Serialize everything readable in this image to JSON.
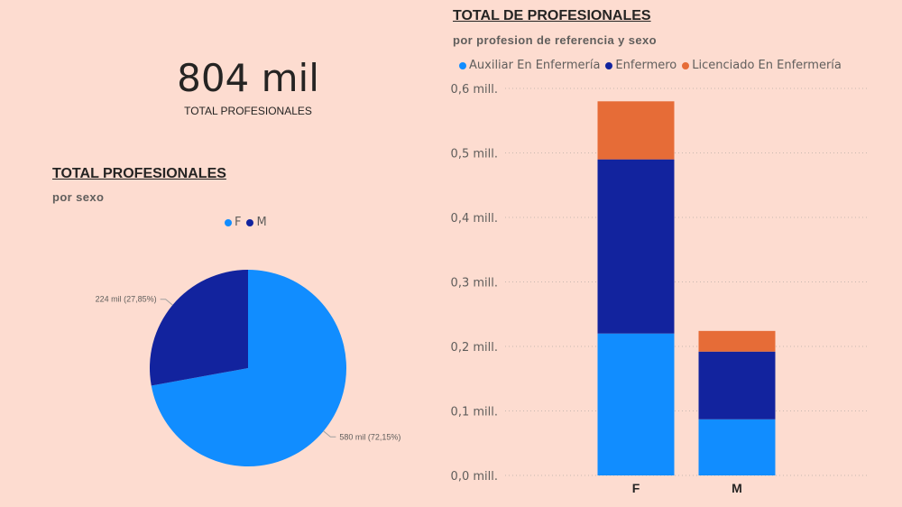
{
  "kpi": {
    "value": "804 mil",
    "label": "TOTAL PROFESIONALES"
  },
  "pie_panel": {
    "title": "TOTAL PROFESIONALES",
    "subtitle": "por sexo",
    "legend": [
      {
        "label": "F",
        "color": "#118dff"
      },
      {
        "label": "M",
        "color": "#12239e"
      }
    ],
    "labels": {
      "F": "580 mil (72,15%)",
      "M": "224 mil (27,85%)"
    }
  },
  "bar_panel": {
    "title": "TOTAL DE PROFESIONALES",
    "subtitle": "por profesion de referencia y sexo",
    "legend": [
      {
        "label": "Auxiliar En Enfermería",
        "color": "#118dff"
      },
      {
        "label": "Enfermero",
        "color": "#12239e"
      },
      {
        "label": "Licenciado En Enfermería",
        "color": "#e66c37"
      }
    ]
  },
  "chart_data": [
    {
      "type": "pie",
      "title": "TOTAL PROFESIONALES",
      "subtitle": "por sexo",
      "categories": [
        "F",
        "M"
      ],
      "values": [
        580,
        224
      ],
      "percentages": [
        72.15,
        27.85
      ],
      "colors": [
        "#118dff",
        "#12239e"
      ],
      "legend_position": "top"
    },
    {
      "type": "bar",
      "stacked": true,
      "title": "TOTAL DE PROFESIONALES",
      "subtitle": "por profesion de referencia y sexo",
      "categories": [
        "F",
        "M"
      ],
      "series": [
        {
          "name": "Auxiliar En Enfermería",
          "color": "#118dff",
          "values": [
            0.22,
            0.087
          ]
        },
        {
          "name": "Enfermero",
          "color": "#12239e",
          "values": [
            0.27,
            0.105
          ]
        },
        {
          "name": "Licenciado En Enfermería",
          "color": "#e66c37",
          "values": [
            0.09,
            0.032
          ]
        }
      ],
      "ylim": [
        0,
        0.6
      ],
      "yticks": [
        "0,0 mill.",
        "0,1 mill.",
        "0,2 mill.",
        "0,3 mill.",
        "0,4 mill.",
        "0,5 mill.",
        "0,6 mill."
      ],
      "grid": true,
      "legend_position": "top"
    }
  ]
}
